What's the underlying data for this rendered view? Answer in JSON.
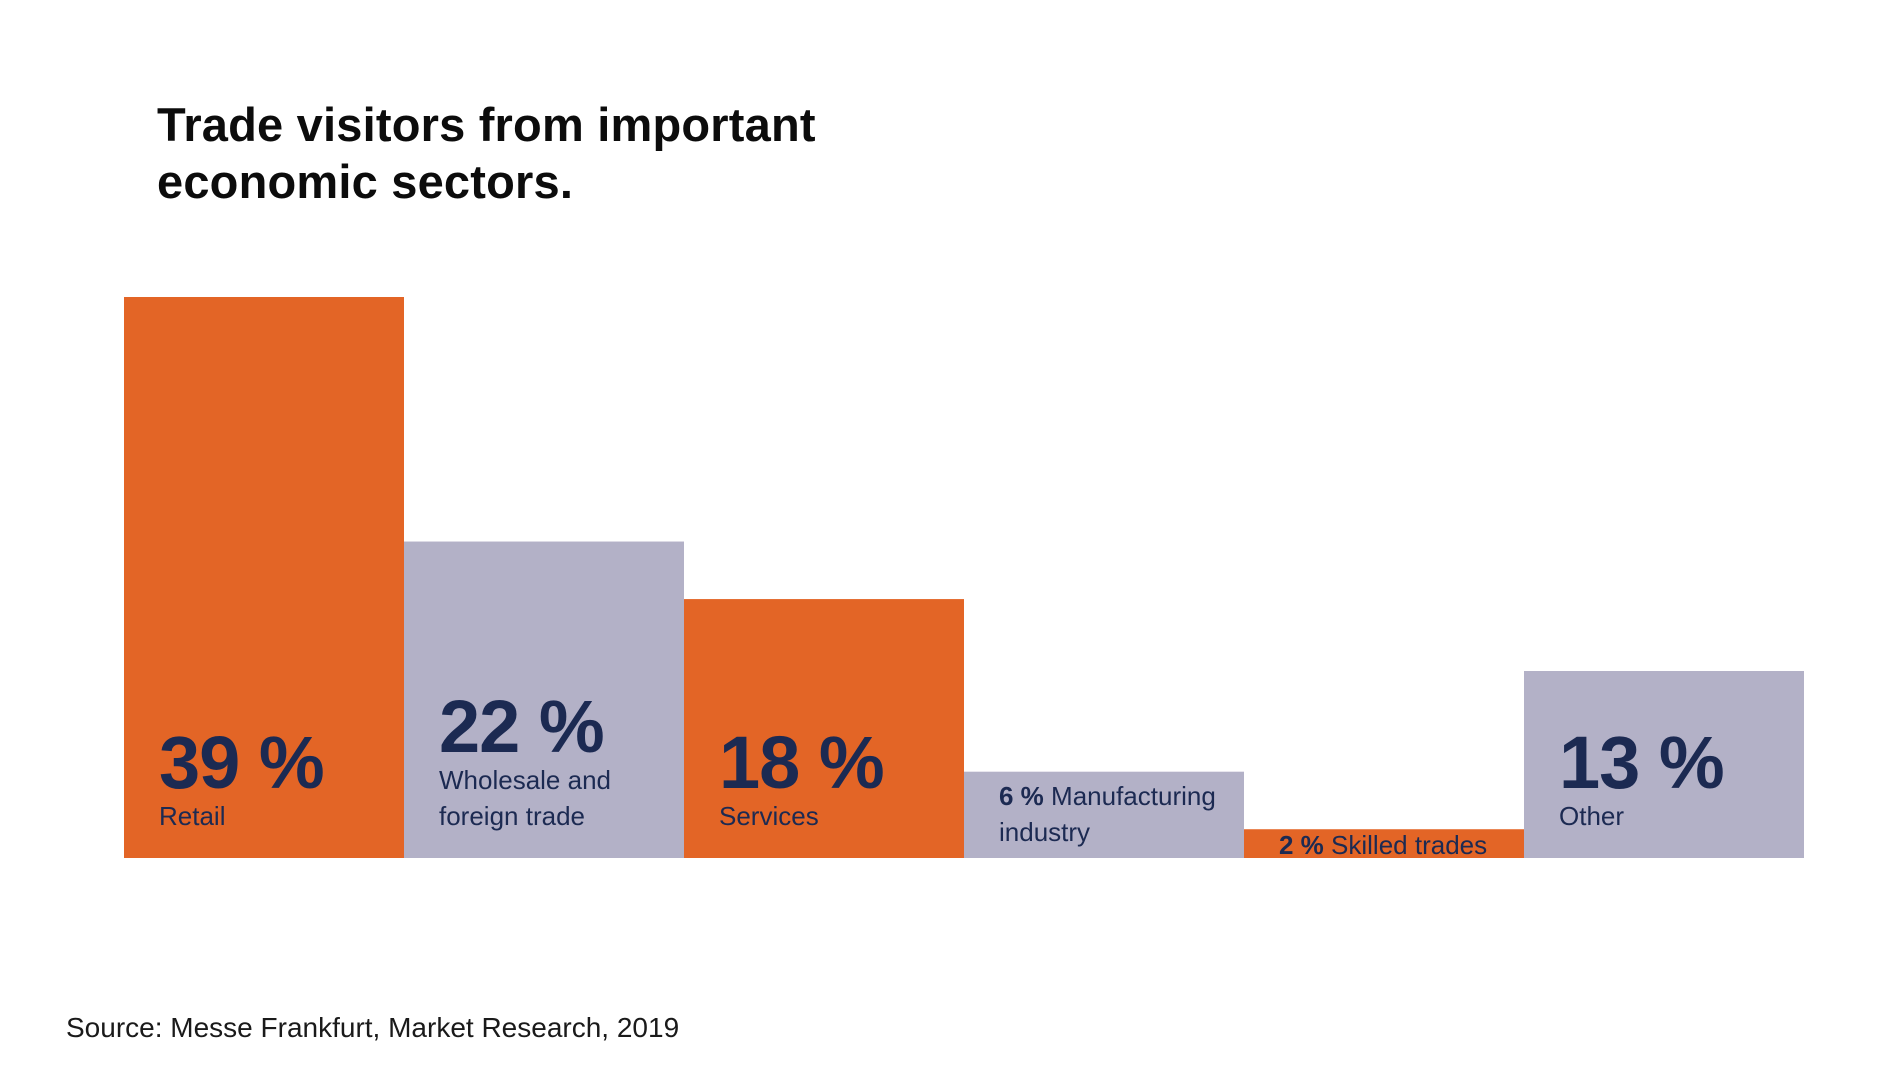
{
  "title": "Trade visitors from important economic sectors.",
  "source": "Source: Messe Frankfurt, Market Research, 2019",
  "colors": {
    "orange": "#e36526",
    "lavender": "#b3b1c7",
    "label": "#1c2a52"
  },
  "chart_data": {
    "type": "bar",
    "title": "Trade visitors from important economic sectors.",
    "unit": "%",
    "ylim": [
      0,
      39
    ],
    "grid": false,
    "categories": [
      "Retail",
      "Wholesale and foreign trade",
      "Services",
      "Manufacturing industry",
      "Skilled trades",
      "Other"
    ],
    "values": [
      39,
      22,
      18,
      6,
      2,
      13
    ],
    "value_labels": [
      "39 %",
      "22 %",
      "18 %",
      "6 %",
      "2 %",
      "13 %"
    ],
    "category_lines": [
      [
        "Retail"
      ],
      [
        "Wholesale and",
        "foreign trade"
      ],
      [
        "Services"
      ],
      [
        "Manufacturing",
        "industry"
      ],
      [
        "Skilled trades"
      ],
      [
        "Other"
      ]
    ],
    "bar_colors": [
      "#e36526",
      "#b3b1c7",
      "#e36526",
      "#b3b1c7",
      "#e36526",
      "#b3b1c7"
    ]
  }
}
